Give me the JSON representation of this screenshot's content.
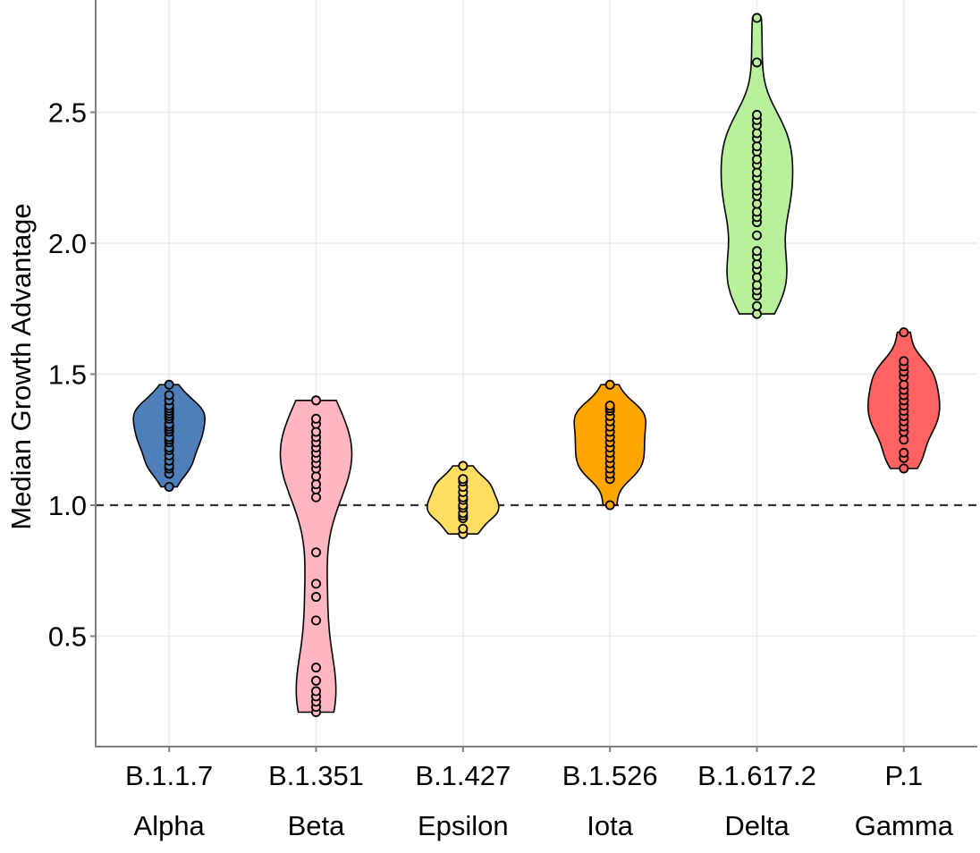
{
  "chart_data": {
    "type": "violin",
    "title": "",
    "xlabel": "",
    "ylabel": "Median Growth Advantage",
    "ylim": [
      0.15,
      2.88
    ],
    "yticks": [
      0.5,
      1.0,
      1.5,
      2.0,
      2.5
    ],
    "ytick_labels": [
      "0.5",
      "1.0",
      "1.5",
      "2.0",
      "2.5"
    ],
    "grid": true,
    "reference_line": {
      "y": 1.0,
      "style": "dashed",
      "color": "#333333"
    },
    "categories": [
      {
        "lineage": "B.1.1.7",
        "name": "Alpha",
        "color": "#4f7fb9",
        "values": [
          1.07,
          1.12,
          1.14,
          1.15,
          1.17,
          1.19,
          1.21,
          1.22,
          1.24,
          1.25,
          1.26,
          1.28,
          1.29,
          1.3,
          1.31,
          1.33,
          1.34,
          1.35,
          1.36,
          1.37,
          1.38,
          1.4,
          1.42,
          1.46
        ]
      },
      {
        "lineage": "B.1.351",
        "name": "Beta",
        "color": "#ffb6c1",
        "values": [
          0.21,
          0.23,
          0.25,
          0.27,
          0.29,
          0.33,
          0.38,
          0.56,
          0.65,
          0.7,
          0.82,
          1.03,
          1.06,
          1.08,
          1.11,
          1.14,
          1.16,
          1.18,
          1.2,
          1.22,
          1.24,
          1.26,
          1.28,
          1.31,
          1.33,
          1.4
        ]
      },
      {
        "lineage": "B.1.427",
        "name": "Epsilon",
        "color": "#fedd61",
        "values": [
          0.89,
          0.91,
          0.95,
          0.96,
          0.97,
          0.99,
          1.0,
          1.02,
          1.03,
          1.05,
          1.07,
          1.09,
          1.1,
          1.15
        ]
      },
      {
        "lineage": "B.1.526",
        "name": "Iota",
        "color": "#ffa500",
        "values": [
          1.0,
          1.1,
          1.12,
          1.14,
          1.16,
          1.18,
          1.2,
          1.22,
          1.24,
          1.26,
          1.28,
          1.3,
          1.32,
          1.34,
          1.36,
          1.37,
          1.38,
          1.46
        ]
      },
      {
        "lineage": "B.1.617.2",
        "name": "Delta",
        "color": "#b9f09b",
        "values": [
          1.73,
          1.76,
          1.8,
          1.82,
          1.84,
          1.87,
          1.9,
          1.92,
          1.95,
          1.97,
          2.03,
          2.08,
          2.1,
          2.12,
          2.15,
          2.18,
          2.2,
          2.22,
          2.25,
          2.27,
          2.3,
          2.32,
          2.35,
          2.37,
          2.4,
          2.42,
          2.45,
          2.47,
          2.49,
          2.69,
          2.86
        ]
      },
      {
        "lineage": "P.1",
        "name": "Gamma",
        "color": "#ff6262",
        "values": [
          1.14,
          1.18,
          1.2,
          1.25,
          1.28,
          1.3,
          1.32,
          1.34,
          1.36,
          1.38,
          1.4,
          1.42,
          1.44,
          1.46,
          1.49,
          1.51,
          1.53,
          1.55,
          1.66
        ]
      }
    ]
  }
}
